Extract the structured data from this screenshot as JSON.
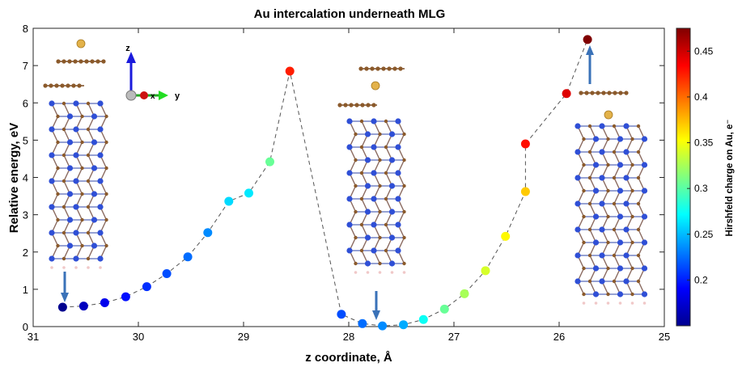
{
  "chart_data": {
    "type": "scatter",
    "title": "Au intercalation underneath MLG",
    "xlabel": "z coordinate, Å",
    "ylabel": "Relative energy, eV",
    "xlim": [
      31,
      25
    ],
    "x_reversed": true,
    "ylim": [
      0,
      8
    ],
    "xticks": [
      31,
      30,
      29,
      28,
      27,
      26,
      25
    ],
    "yticks": [
      0,
      1,
      2,
      3,
      4,
      5,
      6,
      7,
      8
    ],
    "grid": false,
    "line_style": "dashed",
    "colorbar": {
      "label": "Hirshfeld charge on Au, e⁻",
      "range": [
        0.15,
        0.475
      ],
      "ticks": [
        0.2,
        0.25,
        0.3,
        0.35,
        0.4,
        0.45
      ]
    },
    "points": [
      {
        "x": 30.72,
        "y": 0.52,
        "c": 0.155
      },
      {
        "x": 30.52,
        "y": 0.55,
        "c": 0.17
      },
      {
        "x": 30.32,
        "y": 0.64,
        "c": 0.185
      },
      {
        "x": 30.12,
        "y": 0.8,
        "c": 0.195
      },
      {
        "x": 29.92,
        "y": 1.07,
        "c": 0.205
      },
      {
        "x": 29.73,
        "y": 1.42,
        "c": 0.215
      },
      {
        "x": 29.53,
        "y": 1.87,
        "c": 0.225
      },
      {
        "x": 29.34,
        "y": 2.52,
        "c": 0.235
      },
      {
        "x": 29.14,
        "y": 3.36,
        "c": 0.26
      },
      {
        "x": 28.95,
        "y": 3.58,
        "c": 0.265
      },
      {
        "x": 28.75,
        "y": 4.42,
        "c": 0.305
      },
      {
        "x": 28.56,
        "y": 6.85,
        "c": 0.425
      },
      {
        "x": 28.07,
        "y": 0.33,
        "c": 0.215
      },
      {
        "x": 27.87,
        "y": 0.08,
        "c": 0.225
      },
      {
        "x": 27.68,
        "y": 0.02,
        "c": 0.235
      },
      {
        "x": 27.48,
        "y": 0.05,
        "c": 0.245
      },
      {
        "x": 27.29,
        "y": 0.19,
        "c": 0.275
      },
      {
        "x": 27.09,
        "y": 0.47,
        "c": 0.305
      },
      {
        "x": 26.9,
        "y": 0.88,
        "c": 0.325
      },
      {
        "x": 26.7,
        "y": 1.5,
        "c": 0.34
      },
      {
        "x": 26.51,
        "y": 2.42,
        "c": 0.355
      },
      {
        "x": 26.32,
        "y": 3.62,
        "c": 0.37
      },
      {
        "x": 26.32,
        "y": 4.9,
        "c": 0.43
      },
      {
        "x": 25.93,
        "y": 6.25,
        "c": 0.445
      },
      {
        "x": 25.73,
        "y": 7.7,
        "c": 0.475
      }
    ]
  },
  "axes_indicator": {
    "z": "z",
    "x": "x",
    "y": "y"
  }
}
